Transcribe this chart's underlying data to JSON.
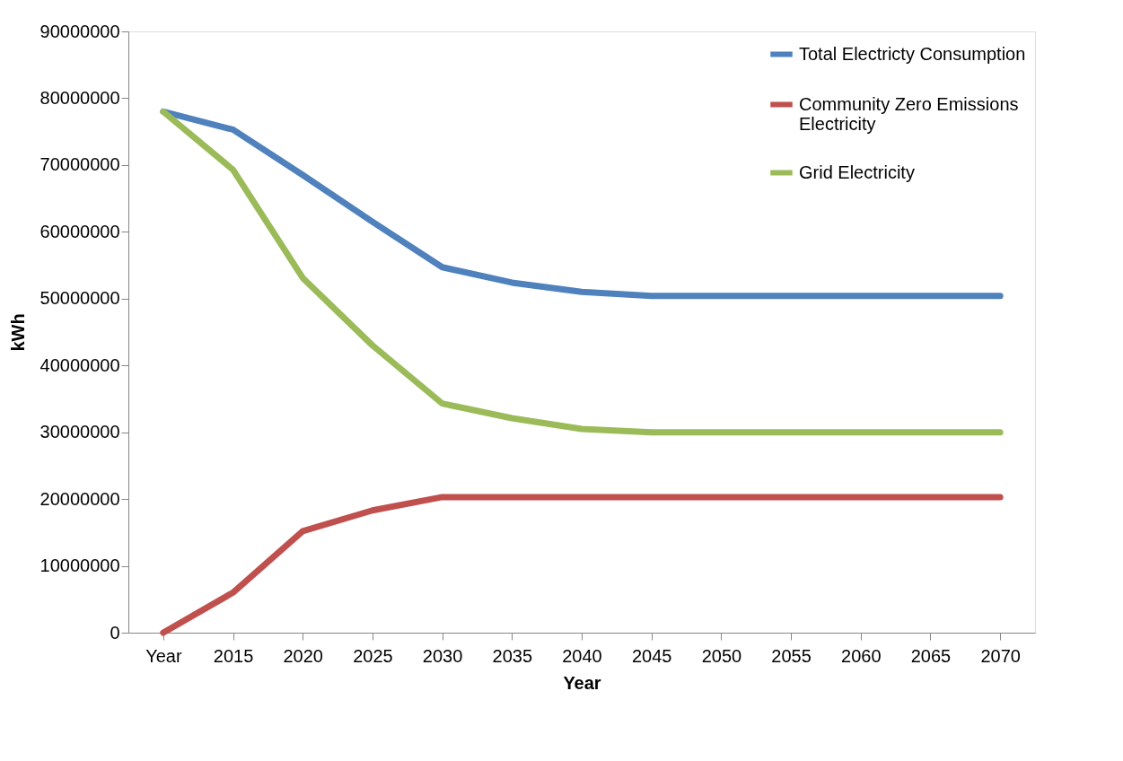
{
  "chart_data": {
    "type": "line",
    "xlabel": "Year",
    "ylabel": "kWh",
    "categories": [
      "Year",
      "2015",
      "2020",
      "2025",
      "2030",
      "2035",
      "2040",
      "2045",
      "2050",
      "2055",
      "2060",
      "2065",
      "2070"
    ],
    "series": [
      {
        "name": "Total Electricty Consumption",
        "color": "#4f81bd",
        "values": [
          78000000,
          75300000,
          68500000,
          61500000,
          54700000,
          52400000,
          51000000,
          50400000,
          50400000,
          50400000,
          50400000,
          50400000,
          50400000
        ]
      },
      {
        "name": "Community Zero Emissions Electricity",
        "color": "#c0504d",
        "values": [
          0,
          6000000,
          15200000,
          18300000,
          20300000,
          20300000,
          20300000,
          20300000,
          20300000,
          20300000,
          20300000,
          20300000,
          20300000
        ]
      },
      {
        "name": "Grid Electricity",
        "color": "#9bbb59",
        "values": [
          78000000,
          69300000,
          53100000,
          43000000,
          34300000,
          32100000,
          30500000,
          30000000,
          30000000,
          30000000,
          30000000,
          30000000,
          30000000
        ]
      }
    ],
    "ylim": [
      0,
      90000000
    ],
    "yticks": [
      0,
      10000000,
      20000000,
      30000000,
      40000000,
      50000000,
      60000000,
      70000000,
      80000000,
      90000000
    ],
    "grid": false,
    "legend": "top right",
    "marker": "none",
    "line_style": "solid"
  }
}
